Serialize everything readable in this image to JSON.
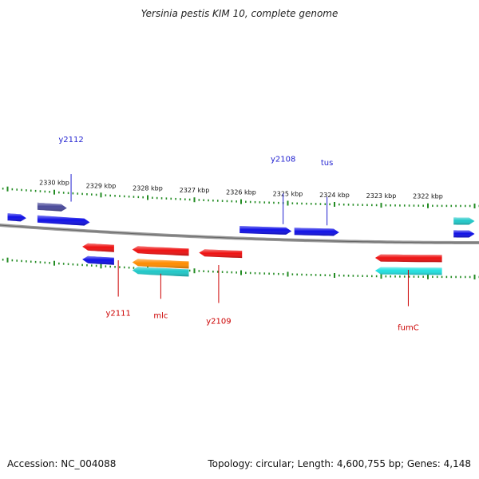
{
  "title": "Yersinia pestis KIM 10, complete genome",
  "footer": {
    "accession": "Accession: NC_004088",
    "summary": "Topology: circular; Length: 4,600,755 bp; Genes: 4,148"
  },
  "colors": {
    "backbone": "#888888",
    "ticks": "#228b22",
    "forward_label": "#1f1fd0",
    "reverse_label": "#cc0000"
  },
  "scale": {
    "unit": "kbp",
    "tick_labels": [
      "2330 kbp",
      "2329 kbp",
      "2328 kbp",
      "2327 kbp",
      "2326 kbp",
      "2325 kbp",
      "2324 kbp",
      "2323 kbp",
      "2322 kbp"
    ]
  },
  "features": [
    {
      "name": "y2112",
      "strand": "forward",
      "track": 1,
      "start": 2329.73,
      "end": 2330.36,
      "color": "#4a4a9a"
    },
    {
      "name": "",
      "strand": "forward",
      "track": 2,
      "start": 2329.24,
      "end": 2330.36,
      "color": "#1010e6"
    },
    {
      "name": "",
      "strand": "forward",
      "track": 2,
      "start": 2330.6,
      "end": 2331.0,
      "color": "#1010e6"
    },
    {
      "name": "y2108",
      "strand": "forward",
      "track": 2,
      "start": 2324.92,
      "end": 2326.03,
      "color": "#1010e6"
    },
    {
      "name": "tus",
      "strand": "forward",
      "track": 2,
      "start": 2323.9,
      "end": 2324.86,
      "color": "#1010e6"
    },
    {
      "name": "",
      "strand": "forward",
      "track": 2,
      "start": 2321.0,
      "end": 2321.45,
      "color": "#1010e6"
    },
    {
      "name": "",
      "strand": "forward",
      "track": 1,
      "start": 2321.0,
      "end": 2321.45,
      "color": "#20c8c8"
    },
    {
      "name": "y2111",
      "strand": "reverse",
      "track": 1,
      "start": 2328.72,
      "end": 2329.4,
      "color": "#ee1111"
    },
    {
      "name": "",
      "strand": "reverse",
      "track": 2,
      "start": 2328.72,
      "end": 2329.4,
      "color": "#1010e6"
    },
    {
      "name": "mlc",
      "strand": "reverse",
      "track": 1,
      "start": 2327.12,
      "end": 2328.33,
      "color": "#ee1111"
    },
    {
      "name": "",
      "strand": "reverse",
      "track": 2,
      "start": 2327.12,
      "end": 2328.33,
      "color": "#ff8c00"
    },
    {
      "name": "",
      "strand": "reverse",
      "track": 3,
      "start": 2327.12,
      "end": 2328.33,
      "color": "#20c8c8"
    },
    {
      "name": "y2109",
      "strand": "reverse",
      "track": 1,
      "start": 2325.98,
      "end": 2326.9,
      "color": "#ee1111"
    },
    {
      "name": "fumC",
      "strand": "reverse",
      "track": 1,
      "start": 2321.7,
      "end": 2323.13,
      "color": "#ee1111"
    },
    {
      "name": "",
      "strand": "reverse",
      "track": 2,
      "start": 2321.7,
      "end": 2323.13,
      "color": "#20e0e0"
    }
  ]
}
